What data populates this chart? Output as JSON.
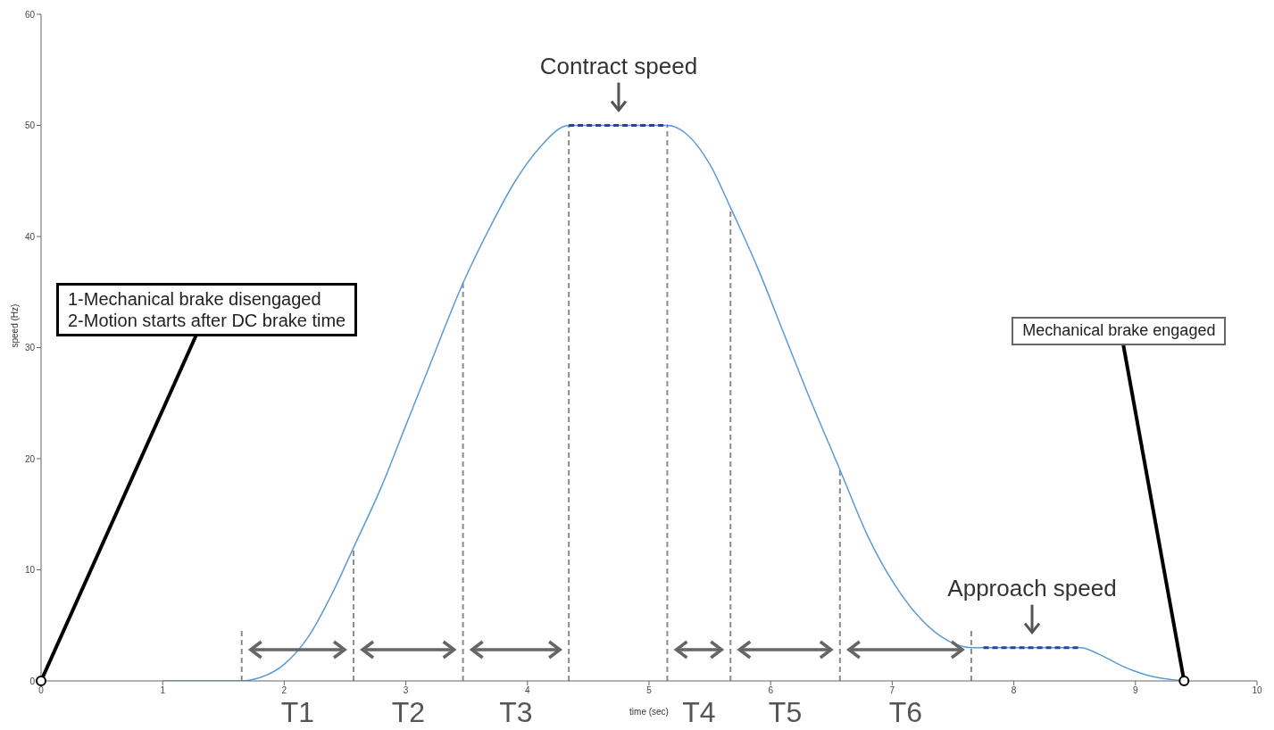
{
  "chart_data": {
    "type": "line",
    "xlabel": "time (sec)",
    "ylabel": "speed (Hz)",
    "xlim": [
      0,
      10
    ],
    "xticks": [
      0,
      1,
      2,
      3,
      4,
      5,
      6,
      7,
      8,
      9,
      10
    ],
    "ylim": [
      0,
      60
    ],
    "yticks": [
      0,
      10,
      20,
      30,
      40,
      50,
      60
    ],
    "marker": "none",
    "line_style": "solid",
    "series": [
      {
        "color": "#5b9bd5",
        "x": [
          1,
          1.65,
          1.8,
          2,
          2.2,
          2.4,
          2.57,
          2.8,
          3,
          3.2,
          3.47,
          3.7,
          3.9,
          4.1,
          4.34,
          4.75,
          5.15,
          5.3,
          5.5,
          5.67,
          5.9,
          6.1,
          6.3,
          6.57,
          6.8,
          7,
          7.2,
          7.4,
          7.65,
          8,
          8.55,
          8.7,
          8.9,
          9.1,
          9.4
        ],
        "values": [
          0,
          0,
          0.3,
          1.5,
          4,
          8,
          12,
          17.5,
          23,
          28.5,
          35.8,
          41,
          45,
          48,
          50,
          50,
          50,
          49.3,
          46.5,
          42.6,
          37,
          31.5,
          26,
          19,
          13,
          9,
          6,
          4,
          3,
          3,
          3,
          2.4,
          1.3,
          0.5,
          0
        ]
      },
      {
        "color": "#2e3f9e",
        "line_style": "dashed",
        "x": [
          4.34,
          5.15
        ],
        "values": [
          50,
          50
        ]
      },
      {
        "color": "#2e3f9e",
        "line_style": "dashed",
        "x": [
          7.75,
          8.55
        ],
        "values": [
          3,
          3
        ]
      }
    ],
    "ref_lines": [
      {
        "axis": "x",
        "value": 1.65,
        "color": "#8c8c8c",
        "line_style": "dashed"
      },
      {
        "axis": "x",
        "value": 2.57,
        "color": "#8c8c8c",
        "line_style": "dashed"
      },
      {
        "axis": "x",
        "value": 3.47,
        "color": "#8c8c8c",
        "line_style": "dashed"
      },
      {
        "axis": "x",
        "value": 4.34,
        "color": "#8c8c8c",
        "line_style": "dashed"
      },
      {
        "axis": "x",
        "value": 5.15,
        "color": "#8c8c8c",
        "line_style": "dashed"
      },
      {
        "axis": "x",
        "value": 5.67,
        "color": "#8c8c8c",
        "line_style": "dashed"
      },
      {
        "axis": "x",
        "value": 6.57,
        "color": "#8c8c8c",
        "line_style": "dashed"
      },
      {
        "axis": "x",
        "value": 7.65,
        "color": "#8c8c8c",
        "line_style": "dashed"
      }
    ],
    "annotations": [
      {
        "text": "Contract speed",
        "x": 4.75,
        "y": 50
      },
      {
        "text": "Approach speed",
        "x": 8.15,
        "y": 3
      },
      {
        "text": "1-Mechanical brake disengaged\n2-Motion starts after DC brake time",
        "x": 0,
        "y": 0
      },
      {
        "text": "Mechanical brake engaged",
        "x": 9.4,
        "y": 0
      },
      "T1",
      "T2",
      "T3",
      "T4",
      "T5",
      "T6"
    ]
  }
}
